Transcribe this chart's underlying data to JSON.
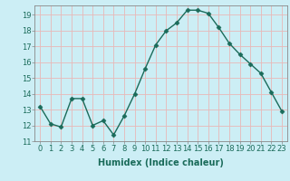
{
  "x": [
    0,
    1,
    2,
    3,
    4,
    5,
    6,
    7,
    8,
    9,
    10,
    11,
    12,
    13,
    14,
    15,
    16,
    17,
    18,
    19,
    20,
    21,
    22,
    23
  ],
  "y": [
    13.2,
    12.1,
    11.9,
    13.7,
    13.7,
    12.0,
    12.3,
    11.4,
    12.6,
    14.0,
    15.6,
    17.1,
    18.0,
    18.5,
    19.3,
    19.3,
    19.1,
    18.2,
    17.2,
    16.5,
    15.9,
    15.3,
    14.1,
    12.9
  ],
  "line_color": "#1a6b5a",
  "marker": "D",
  "marker_size": 2.5,
  "bg_color": "#cceef5",
  "grid_color": "#e8b8b8",
  "xlabel": "Humidex (Indice chaleur)",
  "xlim": [
    -0.5,
    23.5
  ],
  "ylim": [
    11,
    19.6
  ],
  "yticks": [
    11,
    12,
    13,
    14,
    15,
    16,
    17,
    18,
    19
  ],
  "xticks": [
    0,
    1,
    2,
    3,
    4,
    5,
    6,
    7,
    8,
    9,
    10,
    11,
    12,
    13,
    14,
    15,
    16,
    17,
    18,
    19,
    20,
    21,
    22,
    23
  ],
  "xtick_labels": [
    "0",
    "1",
    "2",
    "3",
    "4",
    "5",
    "6",
    "7",
    "8",
    "9",
    "10",
    "11",
    "12",
    "13",
    "14",
    "15",
    "16",
    "17",
    "18",
    "19",
    "20",
    "21",
    "22",
    "23"
  ],
  "tick_fontsize": 6,
  "xlabel_fontsize": 7
}
